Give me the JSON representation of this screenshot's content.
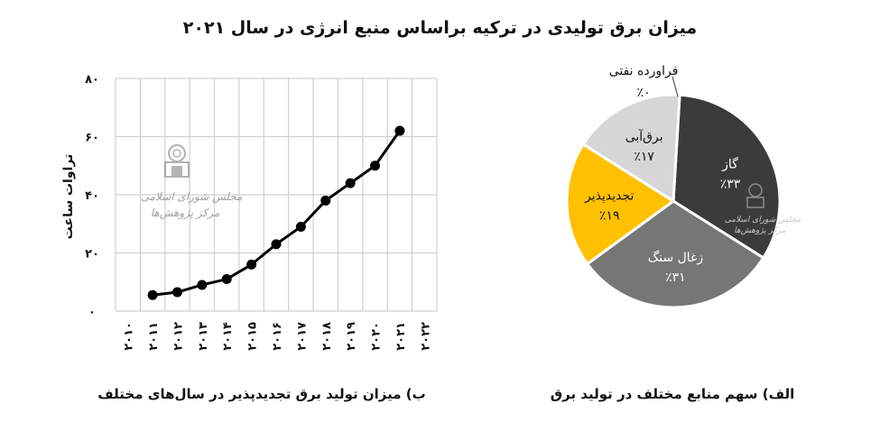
{
  "title": "میزان برق تولیدی در ترکیه براساس منبع انرژی در سال ۲۰۲۱",
  "watermark": {
    "line1": "مجلس شورای اسلامی",
    "line2": "مرکز پژوهش‌ها"
  },
  "chart_data": [
    {
      "type": "line",
      "caption": "ب) میزان تولید برق تجدیدپذیر در سال‌های مختلف",
      "ylabel": "تراوات ساعت",
      "ylim": [
        0,
        80
      ],
      "yticks": [
        0,
        20,
        40,
        60,
        80
      ],
      "ytick_labels": [
        "۰",
        "۲۰",
        "۴۰",
        "۶۰",
        "۸۰"
      ],
      "x_tick_labels": [
        "۲۰۱۰",
        "۲۰۱۱",
        "۲۰۱۲",
        "۲۰۱۳",
        "۲۰۱۴",
        "۲۰۱۵",
        "۲۰۱۶",
        "۲۰۱۷",
        "۲۰۱۸",
        "۲۰۱۹",
        "۲۰۲۰",
        "۲۰۲۱",
        "۲۰۲۲"
      ],
      "x": [
        2011,
        2012,
        2013,
        2014,
        2015,
        2016,
        2017,
        2018,
        2019,
        2020,
        2021
      ],
      "values": [
        5.5,
        6.5,
        9,
        11,
        16,
        23,
        29,
        38,
        44,
        50,
        62
      ],
      "grid": true,
      "line_color": "#000000"
    },
    {
      "type": "pie",
      "caption": "الف) سهم منابع مختلف در تولید برق",
      "slices": [
        {
          "label": "گاز",
          "value_label": "٪۳۳",
          "value": 33,
          "color": "#3b3b3b",
          "text_color": "#ffffff"
        },
        {
          "label": "زغال سنگ",
          "value_label": "٪۳۱",
          "value": 31,
          "color": "#767676",
          "text_color": "#ffffff"
        },
        {
          "label": "تجدیدپذیر",
          "value_label": "٪۱۹",
          "value": 19,
          "color": "#ffc000",
          "text_color": "#111111"
        },
        {
          "label": "برق‌آبی",
          "value_label": "٪۱۷",
          "value": 17,
          "color": "#d6d6d6",
          "text_color": "#111111"
        },
        {
          "label": "فراورده نفتی",
          "value_label": "٪۰",
          "value": 0,
          "color": "#ffffff",
          "text_color": "#111111"
        }
      ]
    }
  ]
}
